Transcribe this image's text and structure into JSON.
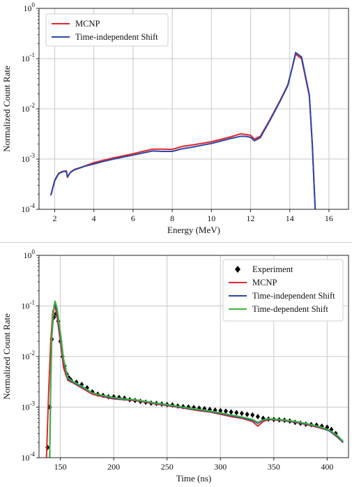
{
  "chart_data": [
    {
      "type": "line",
      "xlabel": "Energy (MeV)",
      "ylabel": "Normalized Count Rate",
      "xlim": [
        1.2,
        17.0
      ],
      "ylim": [
        0.0001,
        1
      ],
      "yscale": "log",
      "grid": true,
      "legend_position": "top-left",
      "x_ticks": [
        2,
        4,
        6,
        8,
        10,
        12,
        14,
        16
      ],
      "x_tick_labels": [
        "2",
        "4",
        "6",
        "8",
        "10",
        "12",
        "14",
        "16"
      ],
      "y_tick_labels": [
        "10-4",
        "10-3",
        "10-2",
        "10-1",
        "100"
      ],
      "series": [
        {
          "name": "MCNP",
          "color": "#e0262b",
          "points": [
            [
              1.8,
              0.00019
            ],
            [
              2.0,
              0.00038
            ],
            [
              2.2,
              0.00052
            ],
            [
              2.4,
              0.00057
            ],
            [
              2.6,
              0.00058
            ],
            [
              2.65,
              0.00043
            ],
            [
              2.8,
              0.00055
            ],
            [
              3.0,
              0.00062
            ],
            [
              3.5,
              0.00072
            ],
            [
              4.0,
              0.00085
            ],
            [
              4.5,
              0.00095
            ],
            [
              5.0,
              0.00106
            ],
            [
              5.5,
              0.00116
            ],
            [
              6.0,
              0.00128
            ],
            [
              6.5,
              0.00142
            ],
            [
              7.0,
              0.00158
            ],
            [
              7.5,
              0.00158
            ],
            [
              8.0,
              0.00156
            ],
            [
              8.5,
              0.00178
            ],
            [
              9.0,
              0.0019
            ],
            [
              9.5,
              0.00205
            ],
            [
              10.0,
              0.00222
            ],
            [
              10.5,
              0.00248
            ],
            [
              11.0,
              0.00278
            ],
            [
              11.5,
              0.00318
            ],
            [
              11.8,
              0.00306
            ],
            [
              12.0,
              0.00298
            ],
            [
              12.2,
              0.0025
            ],
            [
              12.5,
              0.00285
            ],
            [
              13.0,
              0.0062
            ],
            [
              13.5,
              0.0145
            ],
            [
              13.9,
              0.03
            ],
            [
              14.1,
              0.06
            ],
            [
              14.3,
              0.122
            ],
            [
              14.6,
              0.1
            ],
            [
              15.0,
              0.018
            ],
            [
              15.15,
              0.002
            ],
            [
              15.3,
              0.0001
            ]
          ]
        },
        {
          "name": "Time-independent Shift",
          "color": "#2a47a8",
          "points": [
            [
              1.8,
              0.00019
            ],
            [
              2.0,
              0.00037
            ],
            [
              2.2,
              0.00051
            ],
            [
              2.4,
              0.00056
            ],
            [
              2.6,
              0.00057
            ],
            [
              2.65,
              0.00045
            ],
            [
              2.8,
              0.00054
            ],
            [
              3.0,
              0.00061
            ],
            [
              3.5,
              0.00071
            ],
            [
              4.0,
              0.0008
            ],
            [
              4.5,
              0.0009
            ],
            [
              5.0,
              0.001
            ],
            [
              5.5,
              0.0011
            ],
            [
              6.0,
              0.0012
            ],
            [
              6.5,
              0.00132
            ],
            [
              7.0,
              0.00145
            ],
            [
              7.5,
              0.00142
            ],
            [
              8.0,
              0.00142
            ],
            [
              8.5,
              0.0016
            ],
            [
              9.0,
              0.00172
            ],
            [
              9.5,
              0.00188
            ],
            [
              10.0,
              0.00205
            ],
            [
              10.5,
              0.0023
            ],
            [
              11.0,
              0.00258
            ],
            [
              11.5,
              0.00285
            ],
            [
              11.8,
              0.00282
            ],
            [
              12.0,
              0.0027
            ],
            [
              12.2,
              0.00232
            ],
            [
              12.5,
              0.00268
            ],
            [
              13.0,
              0.006
            ],
            [
              13.5,
              0.014
            ],
            [
              13.9,
              0.029
            ],
            [
              14.1,
              0.06
            ],
            [
              14.3,
              0.132
            ],
            [
              14.6,
              0.108
            ],
            [
              15.0,
              0.019
            ],
            [
              15.15,
              0.002
            ],
            [
              15.3,
              0.0001
            ]
          ]
        }
      ]
    },
    {
      "type": "line",
      "xlabel": "Time (ns)",
      "ylabel": "Normalized Count Rate",
      "xlim": [
        130,
        420
      ],
      "ylim": [
        0.0001,
        1
      ],
      "yscale": "log",
      "grid": true,
      "legend_position": "top-right",
      "x_ticks": [
        150,
        200,
        250,
        300,
        350,
        400
      ],
      "x_tick_labels": [
        "150",
        "200",
        "250",
        "300",
        "350",
        "400"
      ],
      "y_tick_labels": [
        "10-4",
        "10-3",
        "10-2",
        "10-1",
        "100"
      ],
      "series": [
        {
          "name": "Experiment",
          "color": "#000000",
          "marker": "diamond",
          "points": [
            [
              138,
              0.00016
            ],
            [
              140,
              0.001
            ],
            [
              142,
              0.022
            ],
            [
              144,
              0.06
            ],
            [
              146,
              0.07
            ],
            [
              148,
              0.05
            ],
            [
              150,
              0.02
            ],
            [
              152,
              0.01
            ],
            [
              154,
              0.0065
            ],
            [
              156,
              0.0045
            ],
            [
              158,
              0.0038
            ],
            [
              160,
              0.0034
            ],
            [
              165,
              0.0031
            ],
            [
              170,
              0.0028
            ],
            [
              175,
              0.0024
            ],
            [
              180,
              0.002
            ],
            [
              185,
              0.0018
            ],
            [
              190,
              0.0017
            ],
            [
              195,
              0.0016
            ],
            [
              200,
              0.0016
            ],
            [
              205,
              0.00155
            ],
            [
              210,
              0.0015
            ],
            [
              215,
              0.0014
            ],
            [
              220,
              0.00135
            ],
            [
              225,
              0.0013
            ],
            [
              230,
              0.00125
            ],
            [
              235,
              0.0012
            ],
            [
              240,
              0.00118
            ],
            [
              245,
              0.00115
            ],
            [
              250,
              0.00112
            ],
            [
              255,
              0.0011
            ],
            [
              260,
              0.00105
            ],
            [
              265,
              0.00102
            ],
            [
              270,
              0.001
            ],
            [
              275,
              0.00098
            ],
            [
              280,
              0.00095
            ],
            [
              285,
              0.00093
            ],
            [
              290,
              0.0009
            ],
            [
              295,
              0.00087
            ],
            [
              300,
              0.00085
            ],
            [
              305,
              0.00083
            ],
            [
              310,
              0.0008
            ],
            [
              315,
              0.00078
            ],
            [
              320,
              0.00075
            ],
            [
              325,
              0.00072
            ],
            [
              330,
              0.0007
            ],
            [
              335,
              0.00065
            ],
            [
              340,
              0.0006
            ],
            [
              345,
              0.00058
            ],
            [
              350,
              0.00057
            ],
            [
              355,
              0.00056
            ],
            [
              360,
              0.00055
            ],
            [
              365,
              0.00053
            ],
            [
              370,
              0.0005
            ],
            [
              375,
              0.00048
            ],
            [
              380,
              0.00046
            ],
            [
              385,
              0.00045
            ],
            [
              390,
              0.00044
            ],
            [
              395,
              0.00042
            ],
            [
              400,
              0.0004
            ],
            [
              404,
              0.00036
            ],
            [
              408,
              0.0003
            ]
          ]
        },
        {
          "name": "MCNP",
          "color": "#e0262b",
          "points": [
            [
              137,
              0.0001
            ],
            [
              139,
              0.002
            ],
            [
              141,
              0.02
            ],
            [
              143,
              0.08
            ],
            [
              145,
              0.1
            ],
            [
              147,
              0.06
            ],
            [
              150,
              0.02
            ],
            [
              153,
              0.006
            ],
            [
              157,
              0.0034
            ],
            [
              162,
              0.003
            ],
            [
              170,
              0.0024
            ],
            [
              180,
              0.0018
            ],
            [
              190,
              0.0016
            ],
            [
              200,
              0.00145
            ],
            [
              210,
              0.0014
            ],
            [
              220,
              0.00135
            ],
            [
              230,
              0.00125
            ],
            [
              240,
              0.00115
            ],
            [
              250,
              0.00108
            ],
            [
              260,
              0.001
            ],
            [
              270,
              0.00092
            ],
            [
              280,
              0.00085
            ],
            [
              290,
              0.0008
            ],
            [
              300,
              0.00072
            ],
            [
              310,
              0.00065
            ],
            [
              320,
              0.0006
            ],
            [
              330,
              0.00052
            ],
            [
              335,
              0.00042
            ],
            [
              340,
              0.00052
            ],
            [
              345,
              0.00057
            ],
            [
              355,
              0.00055
            ],
            [
              365,
              0.00052
            ],
            [
              375,
              0.00048
            ],
            [
              385,
              0.00043
            ],
            [
              395,
              0.00038
            ],
            [
              402,
              0.00034
            ],
            [
              410,
              0.00025
            ],
            [
              415,
              0.0002
            ]
          ]
        },
        {
          "name": "Time-independent Shift",
          "color": "#2a47a8",
          "points": [
            [
              140,
              0.0001
            ],
            [
              141,
              0.003
            ],
            [
              142,
              0.025
            ],
            [
              144,
              0.09
            ],
            [
              145,
              0.11
            ],
            [
              147,
              0.08
            ],
            [
              150,
              0.025
            ],
            [
              153,
              0.008
            ],
            [
              157,
              0.0036
            ],
            [
              162,
              0.0031
            ],
            [
              170,
              0.0025
            ],
            [
              180,
              0.0019
            ],
            [
              190,
              0.00165
            ],
            [
              200,
              0.0015
            ],
            [
              210,
              0.00142
            ],
            [
              220,
              0.00138
            ],
            [
              230,
              0.00128
            ],
            [
              240,
              0.00118
            ],
            [
              250,
              0.0011
            ],
            [
              260,
              0.00102
            ],
            [
              270,
              0.00094
            ],
            [
              280,
              0.00088
            ],
            [
              290,
              0.00082
            ],
            [
              300,
              0.00075
            ],
            [
              310,
              0.00068
            ],
            [
              320,
              0.00062
            ],
            [
              330,
              0.00055
            ],
            [
              335,
              0.00048
            ],
            [
              340,
              0.00055
            ],
            [
              345,
              0.00058
            ],
            [
              355,
              0.00056
            ],
            [
              365,
              0.00053
            ],
            [
              375,
              0.00049
            ],
            [
              385,
              0.00044
            ],
            [
              395,
              0.00039
            ],
            [
              402,
              0.00034
            ],
            [
              410,
              0.00026
            ],
            [
              415,
              0.0002
            ]
          ]
        },
        {
          "name": "Time-dependent Shift",
          "color": "#3cb43c",
          "points": [
            [
              140,
              0.0001
            ],
            [
              141,
              0.003
            ],
            [
              142,
              0.03
            ],
            [
              144,
              0.1
            ],
            [
              145,
              0.125
            ],
            [
              147,
              0.09
            ],
            [
              150,
              0.03
            ],
            [
              153,
              0.009
            ],
            [
              157,
              0.0038
            ],
            [
              162,
              0.0032
            ],
            [
              170,
              0.0026
            ],
            [
              180,
              0.0019
            ],
            [
              190,
              0.0017
            ],
            [
              200,
              0.00155
            ],
            [
              210,
              0.00145
            ],
            [
              220,
              0.0014
            ],
            [
              230,
              0.0013
            ],
            [
              240,
              0.0012
            ],
            [
              250,
              0.00112
            ],
            [
              260,
              0.00104
            ],
            [
              270,
              0.00096
            ],
            [
              280,
              0.0009
            ],
            [
              290,
              0.00084
            ],
            [
              300,
              0.00077
            ],
            [
              310,
              0.0007
            ],
            [
              320,
              0.00064
            ],
            [
              330,
              0.00057
            ],
            [
              335,
              0.0005
            ],
            [
              340,
              0.00056
            ],
            [
              345,
              0.00059
            ],
            [
              355,
              0.00057
            ],
            [
              365,
              0.00054
            ],
            [
              375,
              0.0005
            ],
            [
              385,
              0.00045
            ],
            [
              395,
              0.0004
            ],
            [
              402,
              0.00035
            ],
            [
              410,
              0.00027
            ],
            [
              415,
              0.00021
            ]
          ]
        }
      ]
    }
  ]
}
